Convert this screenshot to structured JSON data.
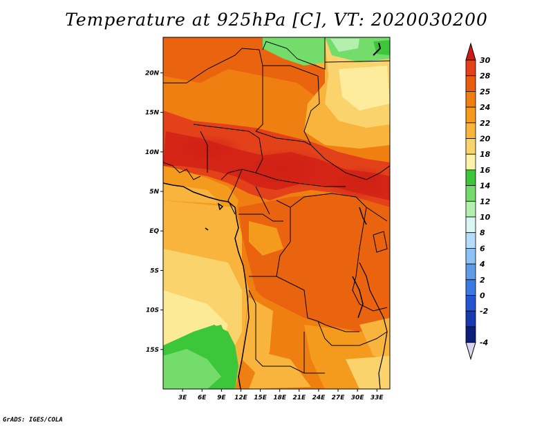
{
  "title": "Temperature at 925hPa [C], VT: 2020030200",
  "credit": "GrADS: IGES/COLA",
  "map": {
    "lon_range": [
      0,
      35
    ],
    "lat_range": [
      -20,
      24.5
    ],
    "lat_ticks": [
      {
        "value": 20,
        "label": "20N"
      },
      {
        "value": 15,
        "label": "15N"
      },
      {
        "value": 10,
        "label": "10N"
      },
      {
        "value": 5,
        "label": "5N"
      },
      {
        "value": 0,
        "label": "EQ"
      },
      {
        "value": -5,
        "label": "5S"
      },
      {
        "value": -10,
        "label": "10S"
      },
      {
        "value": -15,
        "label": "15S"
      }
    ],
    "lon_ticks": [
      {
        "value": 3,
        "label": "3E"
      },
      {
        "value": 6,
        "label": "6E"
      },
      {
        "value": 9,
        "label": "9E"
      },
      {
        "value": 12,
        "label": "12E"
      },
      {
        "value": 15,
        "label": "15E"
      },
      {
        "value": 18,
        "label": "18E"
      },
      {
        "value": 21,
        "label": "21E"
      },
      {
        "value": 24,
        "label": "24E"
      },
      {
        "value": 27,
        "label": "27E"
      },
      {
        "value": 30,
        "label": "30E"
      },
      {
        "value": 33,
        "label": "33E"
      }
    ]
  },
  "colorbar": {
    "levels": [
      {
        "label": "30",
        "color": "#e3411a"
      },
      {
        "label": "28",
        "color": "#e95c10"
      },
      {
        "label": "25",
        "color": "#f07f11"
      },
      {
        "label": "24",
        "color": "#f49a1d"
      },
      {
        "label": "22",
        "color": "#f8b43c"
      },
      {
        "label": "20",
        "color": "#fbd36d"
      },
      {
        "label": "18",
        "color": "#fdf3a8"
      },
      {
        "label": "16",
        "color": "#3cc63a"
      },
      {
        "label": "14",
        "color": "#74dc6a"
      },
      {
        "label": "12",
        "color": "#b3f0ad"
      },
      {
        "label": "10",
        "color": "#d9f6f2"
      },
      {
        "label": "8",
        "color": "#b6dcfb"
      },
      {
        "label": "6",
        "color": "#8cc2f5"
      },
      {
        "label": "4",
        "color": "#5e9ce9"
      },
      {
        "label": "2",
        "color": "#3b7ae3"
      },
      {
        "label": "0",
        "color": "#2356cf"
      },
      {
        "label": "-2",
        "color": "#173ab0"
      },
      {
        "label": "-4",
        "color": "#0b1f7a"
      }
    ],
    "over_color": "#cf1b14",
    "under_color": "#dad2ee"
  }
}
